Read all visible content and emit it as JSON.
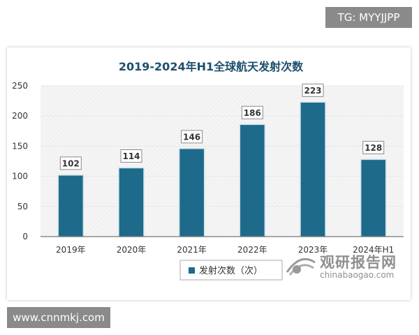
{
  "badges": {
    "top_right": "TG: MYYJJPP",
    "bottom_left": "www.cnnmkj.com"
  },
  "watermark": {
    "name": "观研报告网",
    "url": "chinabaogao.com"
  },
  "colors": {
    "bar": "#1d6a8a",
    "bar_stroke": "#cfe0ea",
    "title": "#1d4f6e",
    "grid": "#e9e9e9",
    "axis": "#333333"
  },
  "chart_data": {
    "type": "bar",
    "title": "2019-2024年H1全球航天发射次数",
    "categories": [
      "2019年",
      "2020年",
      "2021年",
      "2022年",
      "2023年",
      "2024年H1"
    ],
    "series": [
      {
        "name": "发射次数（次）",
        "values": [
          102,
          114,
          146,
          186,
          223,
          128
        ]
      }
    ],
    "data_labels": [
      "102",
      "114",
      "146",
      "186",
      "223",
      "128"
    ],
    "ylim": [
      0,
      250
    ],
    "yticks": [
      0,
      50,
      100,
      150,
      200,
      250
    ],
    "ytick_labels": [
      "0",
      "50",
      "100",
      "150",
      "200",
      "250"
    ],
    "xlabel": "",
    "ylabel": "",
    "legend": "bottom-center",
    "grid": true
  }
}
